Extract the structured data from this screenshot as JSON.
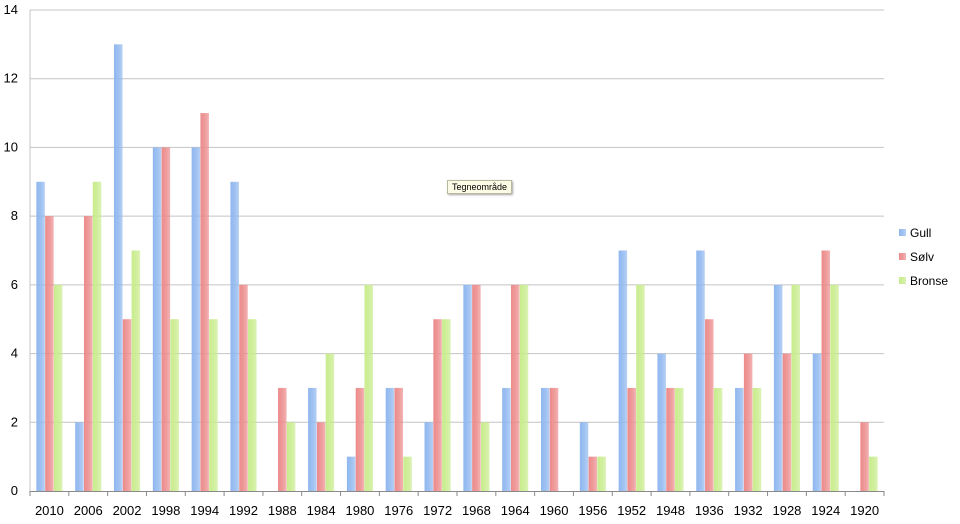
{
  "chart_data": {
    "type": "bar",
    "categories": [
      "2010",
      "2006",
      "2002",
      "1998",
      "1994",
      "1992",
      "1988",
      "1984",
      "1980",
      "1976",
      "1972",
      "1968",
      "1964",
      "1960",
      "1956",
      "1952",
      "1948",
      "1936",
      "1932",
      "1928",
      "1924",
      "1920"
    ],
    "series": [
      {
        "name": "Gull",
        "color": "#8fb7ef",
        "values": [
          9,
          2,
          13,
          10,
          10,
          9,
          0,
          3,
          1,
          3,
          2,
          6,
          3,
          3,
          2,
          7,
          4,
          7,
          3,
          6,
          4,
          0
        ]
      },
      {
        "name": "Sølv",
        "color": "#ec8a8a",
        "values": [
          8,
          8,
          5,
          10,
          11,
          6,
          3,
          2,
          3,
          3,
          5,
          6,
          6,
          3,
          1,
          3,
          3,
          5,
          4,
          4,
          7,
          2
        ]
      },
      {
        "name": "Bronse",
        "color": "#c8ec8c",
        "values": [
          6,
          9,
          7,
          5,
          5,
          5,
          2,
          4,
          6,
          1,
          5,
          2,
          6,
          0,
          1,
          6,
          3,
          3,
          3,
          6,
          6,
          1
        ]
      }
    ],
    "ylim": [
      0,
      14
    ],
    "yticks": [
      "0",
      "2",
      "4",
      "6",
      "8",
      "10",
      "12",
      "14"
    ],
    "grid": true,
    "legend": "right",
    "tooltip": "Tegneområde"
  }
}
